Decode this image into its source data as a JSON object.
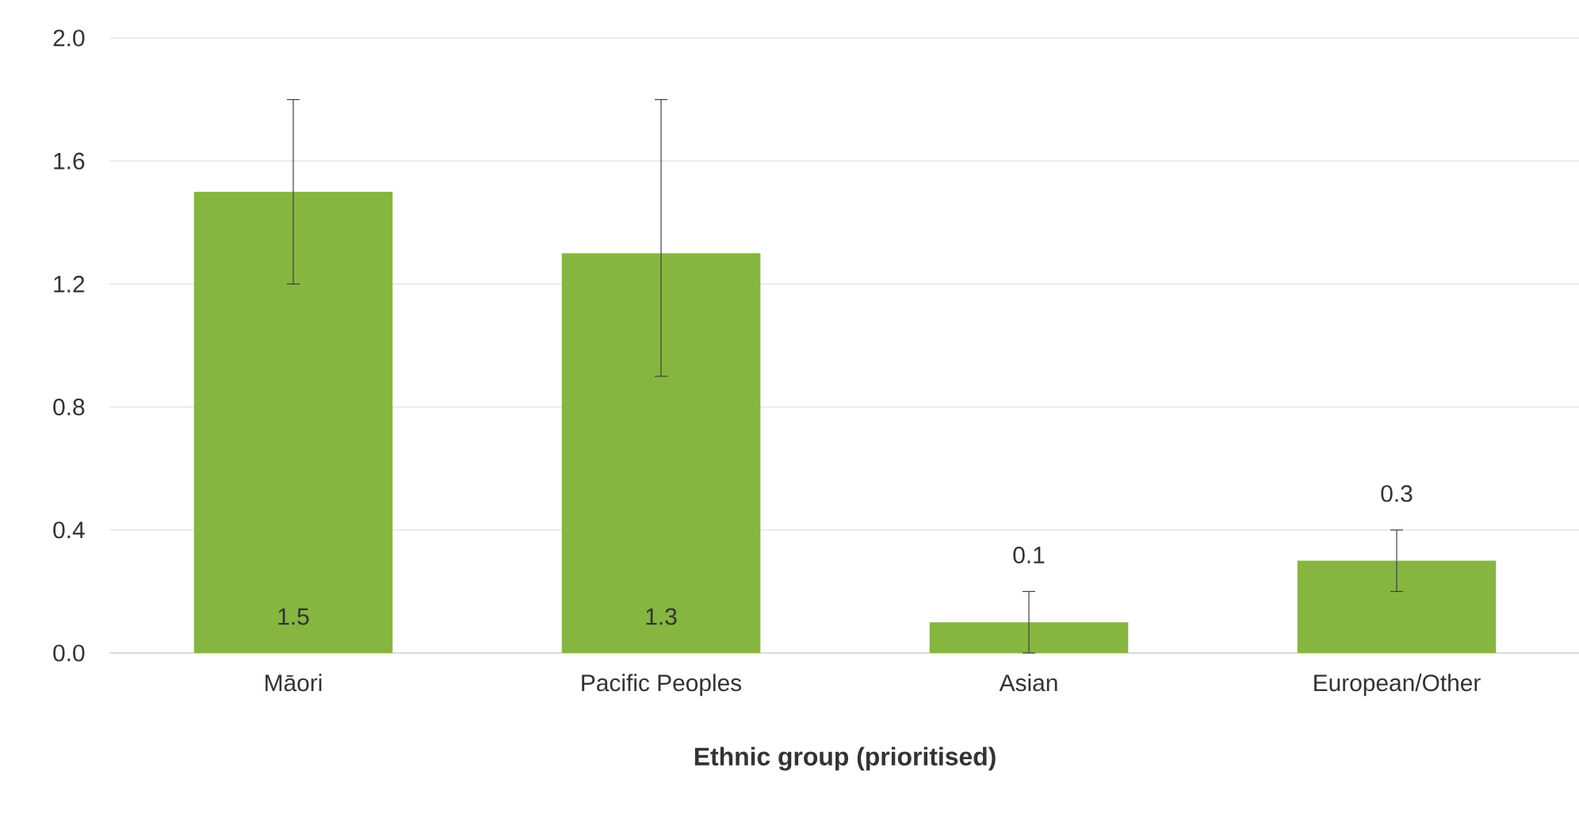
{
  "chart_data": {
    "type": "bar",
    "xlabel": "Ethnic group (prioritised)",
    "categories": [
      "Māori",
      "Pacific Peoples",
      "Asian",
      "European/Other"
    ],
    "values": [
      1.5,
      1.3,
      0.1,
      0.3
    ],
    "errors": [
      [
        1.2,
        1.8
      ],
      [
        0.9,
        1.8
      ],
      [
        0.0,
        0.2
      ],
      [
        0.2,
        0.4
      ]
    ],
    "color": "#86b63f",
    "ylim": [
      0,
      2
    ],
    "yticks": [
      {
        "value": 0,
        "label": "0.0"
      },
      0.4,
      0.8,
      1.2,
      1.6,
      {
        "value": 2,
        "label": "2.0"
      }
    ],
    "grid": "y",
    "data_labels": true
  }
}
